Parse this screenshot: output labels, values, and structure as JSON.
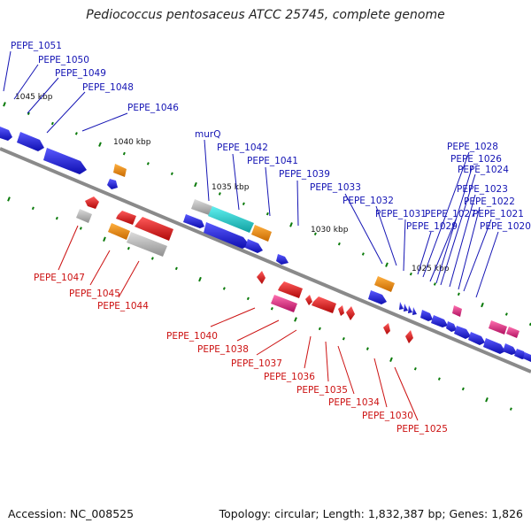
{
  "title": "Pediococcus pentosaceus ATCC 25745, complete genome",
  "footer": {
    "accession": "Accession: NC_008525",
    "summary": "Topology: circular; Length: 1,832,387 bp; Genes: 1,826"
  },
  "colors": {
    "forward_label": "#1414b4",
    "reverse_label": "#cc1111",
    "tick": "#0a7a0a",
    "backbone": "#8a8a8a",
    "blue_gene": "#1a1ae6",
    "red_gene": "#e61010",
    "orange_gene": "#f08c0a",
    "gray_gene": "#b4b4b4",
    "cyan_gene": "#20c8c8",
    "pink_gene": "#e6287f"
  },
  "kbp_markers": [
    "1045 kbp",
    "1040 kbp",
    "1035 kbp",
    "1030 kbp",
    "1025 kbp"
  ],
  "forward_labels": [
    "PEPE_1051",
    "PEPE_1050",
    "PEPE_1049",
    "PEPE_1048",
    "PEPE_1046",
    "murQ",
    "PEPE_1042",
    "PEPE_1041",
    "PEPE_1039",
    "PEPE_1033",
    "PEPE_1032",
    "PEPE_1031",
    "PEPE_1029",
    "PEPE_1028",
    "PEPE_1027",
    "PEPE_1026",
    "PEPE_1024",
    "PEPE_1023",
    "PEPE_1022",
    "PEPE_1021",
    "PEPE_1020"
  ],
  "reverse_labels": [
    "PEPE_1047",
    "PEPE_1045",
    "PEPE_1044",
    "PEPE_1040",
    "PEPE_1038",
    "PEPE_1037",
    "PEPE_1036",
    "PEPE_1035",
    "PEPE_1034",
    "PEPE_1030",
    "PEPE_1025"
  ]
}
